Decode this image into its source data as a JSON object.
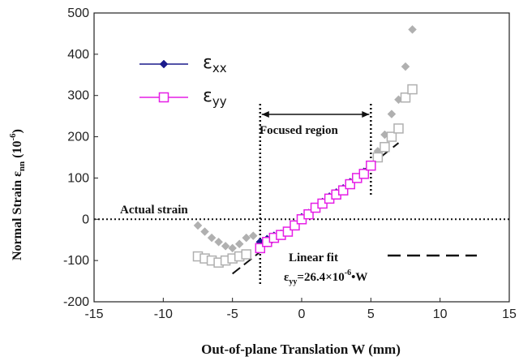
{
  "chart_data": {
    "type": "scatter",
    "xlabel": "Out-of-plane Translation  W (mm)",
    "ylabel_main": "Normal Strain  ε",
    "ylabel_sub": "nn",
    "ylabel_unit": " (10",
    "ylabel_unit_sup": "-6",
    "ylabel_close": ")",
    "xlim": [
      -15,
      15
    ],
    "ylim": [
      -200,
      500
    ],
    "xticks": [
      -15,
      -10,
      -5,
      0,
      5,
      10,
      15
    ],
    "yticks": [
      -200,
      -100,
      0,
      100,
      200,
      300,
      400,
      500
    ],
    "grid": false,
    "legend_position": "top-left",
    "series": [
      {
        "name_symbol": "ε",
        "name_sub": "xx",
        "color": "#1a1a8c",
        "marker": "diamond",
        "line": true,
        "x": [
          -3,
          -2.5,
          -2,
          -1.5,
          -1,
          -0.5,
          0,
          0.5,
          1,
          1.5,
          2,
          2.5,
          3,
          3.5,
          4,
          4.5,
          5
        ],
        "y": [
          -55,
          -48,
          -40,
          -35,
          -30,
          -12,
          5,
          15,
          28,
          42,
          55,
          65,
          75,
          90,
          100,
          115,
          130
        ]
      },
      {
        "name_symbol": "ε",
        "name_sub": "yy",
        "color": "#e61ee6",
        "marker": "square-open",
        "line": true,
        "x": [
          -3,
          -2.5,
          -2,
          -1.5,
          -1,
          -0.5,
          0,
          0.5,
          1,
          1.5,
          2,
          2.5,
          3,
          3.5,
          4,
          4.5,
          5
        ],
        "y": [
          -70,
          -55,
          -45,
          -38,
          -30,
          -15,
          0,
          12,
          28,
          38,
          50,
          60,
          70,
          85,
          100,
          110,
          130
        ]
      },
      {
        "name_symbol": "",
        "name_sub": "",
        "color": "#b0b0b0",
        "marker": "diamond",
        "line": false,
        "x": [
          -7.5,
          -7,
          -6.5,
          -6,
          -5.5,
          -5,
          -4.5,
          -4,
          -3.5,
          5.5,
          6,
          6.5,
          7,
          7.5,
          8
        ],
        "y": [
          -15,
          -30,
          -45,
          -55,
          -65,
          -70,
          -60,
          -45,
          -40,
          165,
          205,
          255,
          290,
          370,
          460
        ]
      },
      {
        "name_symbol": "",
        "name_sub": "",
        "color": "#b0b0b0",
        "marker": "square-open",
        "line": false,
        "x": [
          -7.5,
          -7,
          -6.5,
          -6,
          -5.5,
          -5,
          -4.5,
          -4,
          5.5,
          6,
          6.5,
          7,
          7.5,
          8
        ],
        "y": [
          -90,
          -95,
          -100,
          -105,
          -100,
          -95,
          -90,
          -85,
          150,
          175,
          200,
          220,
          295,
          315
        ]
      }
    ],
    "fit_line": {
      "x": [
        -5,
        7
      ],
      "y": [
        -132,
        185
      ],
      "style": "dashed"
    },
    "actual_strain": {
      "y": 0,
      "label": "Actual strain"
    },
    "focused_region": {
      "x": [
        -3,
        5
      ],
      "label": "Focused region"
    },
    "fit_legend": {
      "label": "Linear fit",
      "equation_prefix": "ε",
      "equation_sub": "yy",
      "equation_mid": "=26.4×10",
      "equation_sup": "-6",
      "equation_end": "•W"
    }
  }
}
